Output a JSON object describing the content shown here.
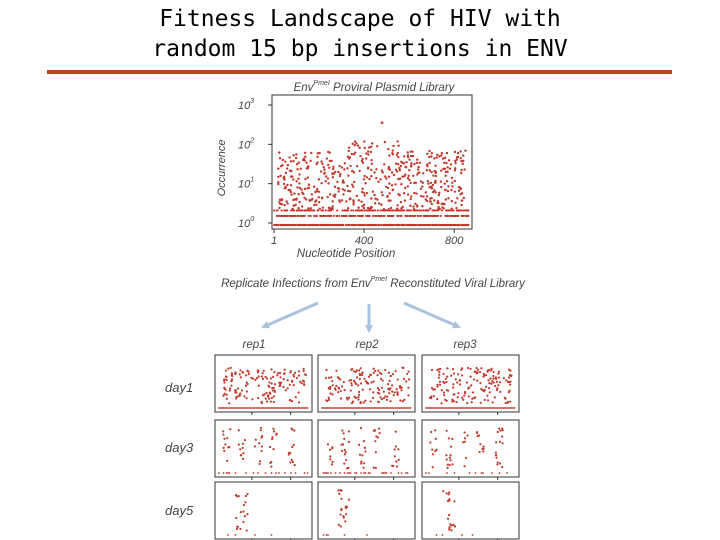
{
  "slide": {
    "title_line1": "Fitness Landscape of HIV with",
    "title_line2": "random 15 bp insertions in ENV"
  },
  "colors": {
    "accent_rule": "#c0441e",
    "points": "#c0392b",
    "arrows": "#a9c3df"
  },
  "chart_data": [
    {
      "type": "scatter",
      "title_prefix": "Env",
      "title_superscript": "PmeI",
      "title_suffix": "Proviral Plasmid Library",
      "xlabel": "Nucleotide Position",
      "ylabel": "Occurrence",
      "xticks": [
        "1",
        "400",
        "800"
      ],
      "xlim": [
        1,
        870
      ],
      "yscale": "log",
      "ylim": [
        1,
        1000
      ],
      "yticks": [
        {
          "base": "10",
          "exp": "0"
        },
        {
          "base": "10",
          "exp": "1"
        },
        {
          "base": "10",
          "exp": "2"
        },
        {
          "base": "10",
          "exp": "3"
        }
      ],
      "note": "dense red scatter of insertion counts across ENV (values mostly 1–100, peak ~400)"
    },
    {
      "type": "scatter",
      "caption_prefix": "Replicate Infections from Env",
      "caption_superscript": "PmeI",
      "caption_suffix": "Reconstituted Viral Library",
      "columns": [
        "rep1",
        "rep2",
        "rep3"
      ],
      "rows": [
        "day1",
        "day3",
        "day5"
      ],
      "panel_density": [
        1.0,
        0.3,
        0.1
      ]
    }
  ]
}
